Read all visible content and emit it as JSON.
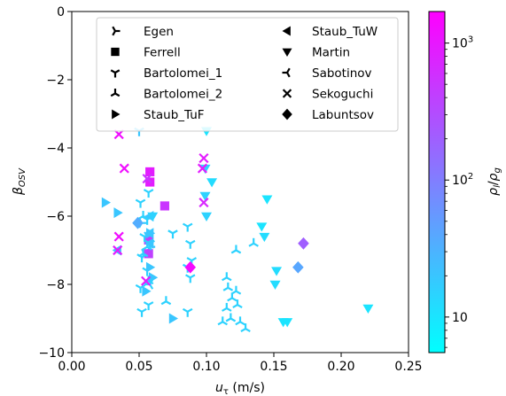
{
  "chart_data": {
    "type": "scatter",
    "xlabel_main": "u",
    "xlabel_sub": "τ",
    "xlabel_unit": " (m/s)",
    "ylabel_main": "β",
    "ylabel_sub": "OSV",
    "xlim": [
      0.0,
      0.25
    ],
    "ylim": [
      -10,
      0
    ],
    "x_ticks": [
      {
        "value": 0.0,
        "label": "0.00"
      },
      {
        "value": 0.05,
        "label": "0.05"
      },
      {
        "value": 0.1,
        "label": "0.10"
      },
      {
        "value": 0.15,
        "label": "0.15"
      },
      {
        "value": 0.2,
        "label": "0.20"
      },
      {
        "value": 0.25,
        "label": "0.25"
      }
    ],
    "y_ticks": [
      {
        "value": 0,
        "label": "0"
      },
      {
        "value": -2,
        "label": "−2"
      },
      {
        "value": -4,
        "label": "−4"
      },
      {
        "value": -6,
        "label": "−6"
      },
      {
        "value": -8,
        "label": "−8"
      },
      {
        "value": -10,
        "label": "−10"
      }
    ],
    "grid": false,
    "legend_position": "top-center",
    "colorbar": {
      "scale": "log",
      "range": [
        5.5,
        1700
      ],
      "colormap_low": "#00ffff",
      "colormap_high": "#ff00ff",
      "tick_labels": [
        {
          "value": 10,
          "base": "10",
          "exp": ""
        },
        {
          "value": 100,
          "base": "10",
          "exp": "2"
        },
        {
          "value": 1000,
          "base": "10",
          "exp": "3"
        }
      ],
      "label_main": "ρ",
      "label_sub_1": "l",
      "label_slash": "/",
      "label_main_2": "ρ",
      "label_sub_2": "g"
    },
    "series": [
      {
        "name": "Egen",
        "marker": "tri_right",
        "color": "#000000",
        "points": [
          [
            0.056,
            -6.6,
            20
          ],
          [
            0.058,
            -6.9,
            20
          ],
          [
            0.054,
            -7.1,
            18
          ],
          [
            0.052,
            -6.2,
            18
          ]
        ]
      },
      {
        "name": "Ferrell",
        "marker": "square",
        "color": "#000000",
        "points": [
          [
            0.058,
            -4.7,
            900
          ],
          [
            0.058,
            -5.0,
            900
          ],
          [
            0.069,
            -5.7,
            500
          ],
          [
            0.057,
            -6.7,
            400
          ],
          [
            0.057,
            -7.1,
            400
          ]
        ]
      },
      {
        "name": "Bartolomei_1",
        "marker": "tri_down",
        "color": "#000000",
        "points": [
          [
            0.05,
            -3.5,
            20
          ],
          [
            0.057,
            -5.3,
            15
          ],
          [
            0.051,
            -5.6,
            15
          ],
          [
            0.056,
            -6.1,
            15
          ],
          [
            0.054,
            -6.6,
            15
          ],
          [
            0.058,
            -6.8,
            15
          ],
          [
            0.052,
            -7.2,
            15
          ],
          [
            0.056,
            -7.6,
            15
          ],
          [
            0.051,
            -8.1,
            15
          ],
          [
            0.057,
            -8.6,
            15
          ],
          [
            0.052,
            -8.8,
            15
          ],
          [
            0.086,
            -6.3,
            15
          ],
          [
            0.088,
            -6.8,
            15
          ],
          [
            0.089,
            -7.3,
            15
          ],
          [
            0.086,
            -7.5,
            15
          ],
          [
            0.088,
            -7.8,
            15
          ],
          [
            0.086,
            -8.8,
            15
          ],
          [
            0.075,
            -6.5,
            15
          ]
        ]
      },
      {
        "name": "Bartolomei_2",
        "marker": "tri_up",
        "color": "#000000",
        "points": [
          [
            0.053,
            -6.0,
            15
          ],
          [
            0.056,
            -6.9,
            15
          ],
          [
            0.053,
            -7.1,
            15
          ],
          [
            0.057,
            -7.9,
            15
          ],
          [
            0.07,
            -8.5,
            15
          ],
          [
            0.115,
            -7.8,
            15
          ],
          [
            0.116,
            -8.1,
            15
          ],
          [
            0.119,
            -8.4,
            15
          ],
          [
            0.115,
            -8.7,
            15
          ],
          [
            0.118,
            -9.0,
            15
          ],
          [
            0.112,
            -9.1,
            15
          ],
          [
            0.122,
            -8.2,
            15
          ],
          [
            0.123,
            -8.6,
            15
          ],
          [
            0.125,
            -9.1,
            15
          ],
          [
            0.129,
            -9.3,
            15
          ],
          [
            0.122,
            -7.0,
            15
          ],
          [
            0.135,
            -6.8,
            15
          ]
        ]
      },
      {
        "name": "Staub_TuF",
        "marker": "triangle_right",
        "color": "#000000",
        "points": [
          [
            0.025,
            -5.6,
            20
          ],
          [
            0.034,
            -5.9,
            20
          ],
          [
            0.058,
            -6.5,
            20
          ],
          [
            0.058,
            -7.5,
            20
          ],
          [
            0.06,
            -7.8,
            20
          ],
          [
            0.055,
            -8.2,
            20
          ],
          [
            0.075,
            -9.0,
            20
          ]
        ]
      },
      {
        "name": "Staub_TuW",
        "marker": "triangle_left",
        "color": "#000000",
        "points": [
          [
            0.034,
            -7.0,
            20
          ],
          [
            0.058,
            -6.5,
            20
          ],
          [
            0.058,
            -6.8,
            20
          ],
          [
            0.058,
            -6.0,
            20
          ]
        ]
      },
      {
        "name": "Martin",
        "marker": "triangle_down",
        "color": "#000000",
        "points": [
          [
            0.1,
            -3.5,
            10
          ],
          [
            0.099,
            -4.6,
            15
          ],
          [
            0.104,
            -5.0,
            12
          ],
          [
            0.099,
            -5.4,
            15
          ],
          [
            0.1,
            -6.0,
            15
          ],
          [
            0.145,
            -5.5,
            10
          ],
          [
            0.141,
            -6.3,
            10
          ],
          [
            0.143,
            -6.6,
            12
          ],
          [
            0.152,
            -7.6,
            12
          ],
          [
            0.151,
            -8.0,
            12
          ],
          [
            0.157,
            -9.1,
            10
          ],
          [
            0.16,
            -9.1,
            10
          ],
          [
            0.22,
            -8.7,
            10
          ],
          [
            0.06,
            -6.0,
            15
          ]
        ]
      },
      {
        "name": "Sabotinov",
        "marker": "tri_left",
        "color": "#000000",
        "points": [
          [
            0.058,
            -8.0,
            15
          ]
        ]
      },
      {
        "name": "Sekoguchi",
        "marker": "x",
        "color": "#000000",
        "points": [
          [
            0.035,
            -3.6,
            1200
          ],
          [
            0.039,
            -4.6,
            1200
          ],
          [
            0.035,
            -6.6,
            1200
          ],
          [
            0.034,
            -7.0,
            900
          ],
          [
            0.055,
            -7.9,
            900
          ],
          [
            0.098,
            -4.3,
            900
          ],
          [
            0.097,
            -4.6,
            900
          ],
          [
            0.098,
            -5.6,
            700
          ],
          [
            0.056,
            -4.9,
            500
          ]
        ]
      },
      {
        "name": "Labuntsov",
        "marker": "diamond",
        "color": "#000000",
        "points": [
          [
            0.049,
            -6.2,
            35
          ],
          [
            0.088,
            -7.5,
            1400
          ],
          [
            0.172,
            -6.8,
            200
          ],
          [
            0.168,
            -7.5,
            40
          ]
        ]
      }
    ]
  }
}
